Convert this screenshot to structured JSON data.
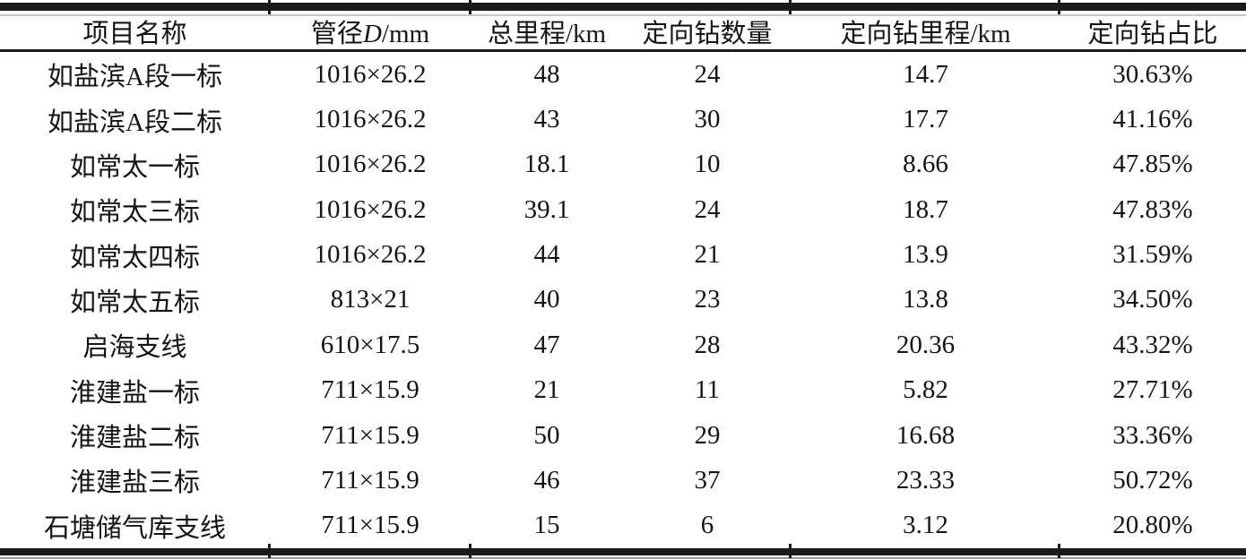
{
  "colors": {
    "rule": "#1a1a1a",
    "text": "#141414",
    "background": "#ffffff",
    "echo_rule_top": "#c6c6c6",
    "echo_rule_bottom": "#9a9a9a"
  },
  "table": {
    "columns": [
      {
        "label": "项目名称"
      },
      {
        "label_prefix": "管径",
        "label_symbol": "D",
        "label_suffix": "/mm"
      },
      {
        "label": "总里程/km"
      },
      {
        "label": "定向钻数量"
      },
      {
        "label": "定向钻里程/km"
      },
      {
        "label": "定向钻占比"
      }
    ],
    "rows": [
      [
        "如盐滨A段一标",
        "1016×26.2",
        "48",
        "24",
        "14.7",
        "30.63%"
      ],
      [
        "如盐滨A段二标",
        "1016×26.2",
        "43",
        "30",
        "17.7",
        "41.16%"
      ],
      [
        "如常太一标",
        "1016×26.2",
        "18.1",
        "10",
        "8.66",
        "47.85%"
      ],
      [
        "如常太三标",
        "1016×26.2",
        "39.1",
        "24",
        "18.7",
        "47.83%"
      ],
      [
        "如常太四标",
        "1016×26.2",
        "44",
        "21",
        "13.9",
        "31.59%"
      ],
      [
        "如常太五标",
        "813×21",
        "40",
        "23",
        "13.8",
        "34.50%"
      ],
      [
        "启海支线",
        "610×17.5",
        "47",
        "28",
        "20.36",
        "43.32%"
      ],
      [
        "淮建盐一标",
        "711×15.9",
        "21",
        "11",
        "5.82",
        "27.71%"
      ],
      [
        "淮建盐二标",
        "711×15.9",
        "50",
        "29",
        "16.68",
        "33.36%"
      ],
      [
        "淮建盐三标",
        "711×15.9",
        "46",
        "37",
        "23.33",
        "50.72%"
      ],
      [
        "石塘储气库支线",
        "711×15.9",
        "15",
        "6",
        "3.12",
        "20.80%"
      ]
    ]
  }
}
